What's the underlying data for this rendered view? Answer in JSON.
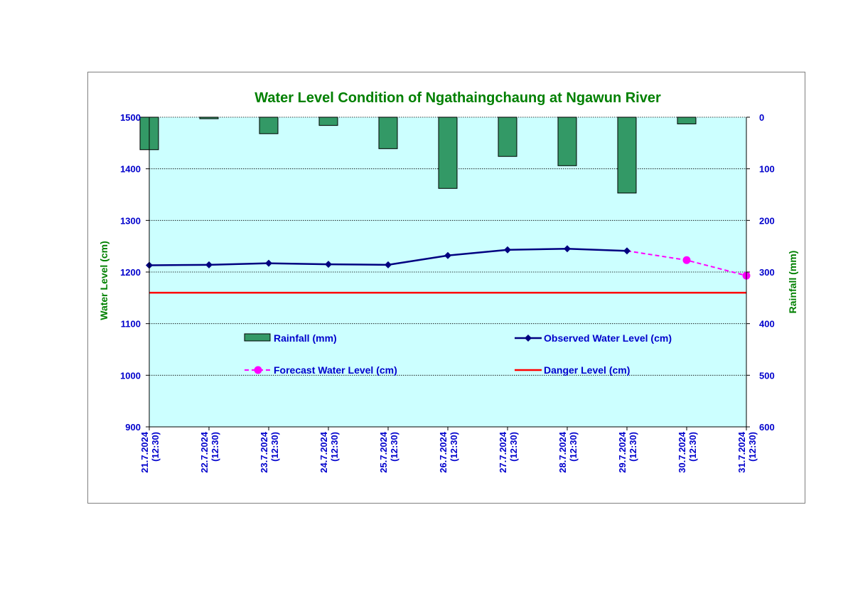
{
  "chart_data": {
    "type": "bar+line",
    "title": "Water Level Condition of  Ngathaingchaung at Ngawun River",
    "categories": [
      "21.7.2024",
      "22.7.2024",
      "23.7.2024",
      "24.7.2024",
      "25.7.2024",
      "26.7.2024",
      "27.7.2024",
      "28.7.2024",
      "29.7.2024",
      "30.7.2024",
      "31.7.2024"
    ],
    "category_time": "(12:30)",
    "left_axis": {
      "label": "Water Level (cm)",
      "ylim": [
        900,
        1500
      ],
      "ticks": [
        900,
        1000,
        1100,
        1200,
        1300,
        1400,
        1500
      ]
    },
    "right_axis": {
      "label": "Rainfall (mm)",
      "ylim": [
        0,
        600
      ],
      "reversed": true,
      "ticks": [
        0,
        100,
        200,
        300,
        400,
        500,
        600
      ]
    },
    "grid": true,
    "series": [
      {
        "name": "Rainfall (mm)",
        "kind": "bar",
        "axis": "right",
        "color": "#339966",
        "values": [
          63,
          3,
          32,
          16,
          61,
          138,
          76,
          94,
          147,
          13,
          null
        ]
      },
      {
        "name": "Observed Water Level (cm)",
        "kind": "line",
        "axis": "left",
        "color": "#000080",
        "marker": "diamond",
        "values": [
          1213,
          1214,
          1217,
          1215,
          1214,
          1232,
          1243,
          1245,
          1241,
          null,
          null
        ]
      },
      {
        "name": "Forecast Water Level (cm)",
        "kind": "line",
        "axis": "left",
        "color": "#ff00ff",
        "marker": "circle",
        "dash": true,
        "values": [
          null,
          null,
          null,
          null,
          null,
          null,
          null,
          null,
          null,
          1223,
          1193
        ]
      },
      {
        "name": "Danger Level (cm)",
        "kind": "line",
        "axis": "left",
        "color": "#ff0000",
        "values": [
          1160,
          1160,
          1160,
          1160,
          1160,
          1160,
          1160,
          1160,
          1160,
          1160,
          1160
        ]
      }
    ],
    "legend_position": "inside-lower",
    "colors": {
      "plot_background": "#ccffff",
      "title": "#008000",
      "axis_title": "#008000",
      "tick_label": "#0000cc",
      "legend_text": "#0000cc"
    }
  }
}
